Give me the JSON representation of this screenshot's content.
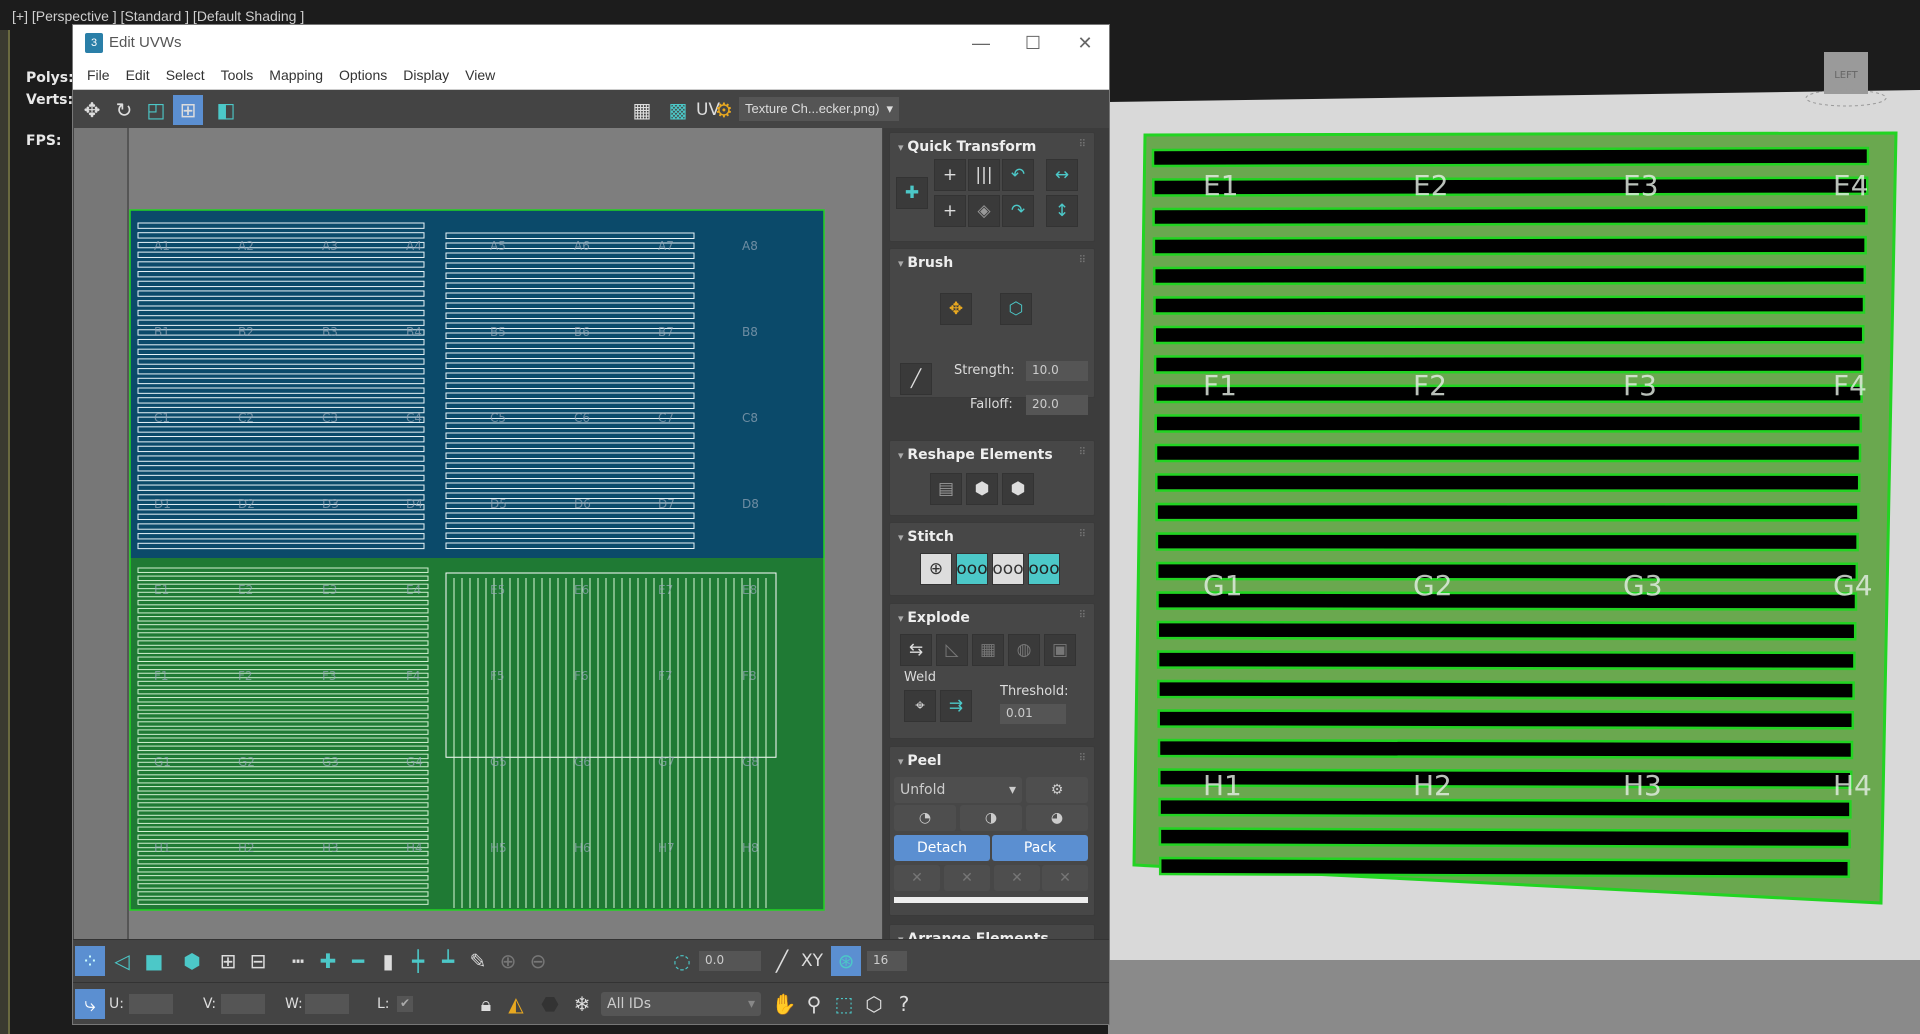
{
  "viewport": {
    "label": "[+] [Perspective ] [Standard ] [Default Shading ]",
    "stats": {
      "polys": "Polys:",
      "verts": "Verts:",
      "fps": "FPS:"
    },
    "viewcube_label": "LEFT",
    "texture_labels": [
      "E1",
      "E2",
      "E3",
      "E4",
      "F1",
      "F2",
      "F3",
      "F4",
      "G1",
      "G2",
      "G3",
      "G4",
      "H1",
      "H2",
      "H3",
      "H4"
    ]
  },
  "window": {
    "title": "Edit UVWs",
    "app_icon": "3",
    "controls": {
      "minimize": "—",
      "maximize": "☐",
      "close": "✕"
    }
  },
  "menu": [
    "File",
    "Edit",
    "Select",
    "Tools",
    "Mapping",
    "Options",
    "Display",
    "View"
  ],
  "toolbar": {
    "uv_label": "UV",
    "texture_dropdown": "Texture Ch...ecker.png)"
  },
  "uv_labels": {
    "rows": [
      "A",
      "B",
      "C",
      "D",
      "E",
      "F",
      "G",
      "H"
    ],
    "cols": [
      "1",
      "2",
      "3",
      "4",
      "5",
      "6",
      "7",
      "8"
    ]
  },
  "panel": {
    "quick_transform": "Quick Transform",
    "brush": {
      "title": "Brush",
      "strength_label": "Strength:",
      "strength": "10.0",
      "falloff_label": "Falloff:",
      "falloff": "20.0"
    },
    "reshape": "Reshape Elements",
    "stitch": "Stitch",
    "explode": {
      "title": "Explode",
      "weld": "Weld",
      "threshold_label": "Threshold:",
      "threshold": "0.01"
    },
    "peel": {
      "title": "Peel",
      "mode": "Unfold",
      "detach": "Detach",
      "pack": "Pack"
    },
    "arrange": "Arrange Elements"
  },
  "bottom": {
    "angle": "0.0",
    "xy": "XY",
    "snap_value": "16",
    "u_label": "U:",
    "v_label": "V:",
    "w_label": "W:",
    "l_label": "L:",
    "l_checked": true,
    "id_filter": "All IDs"
  },
  "colors": {
    "accent": "#4cc8c8",
    "button_blue": "#5b8fd1",
    "uv_green": "#22d422"
  }
}
